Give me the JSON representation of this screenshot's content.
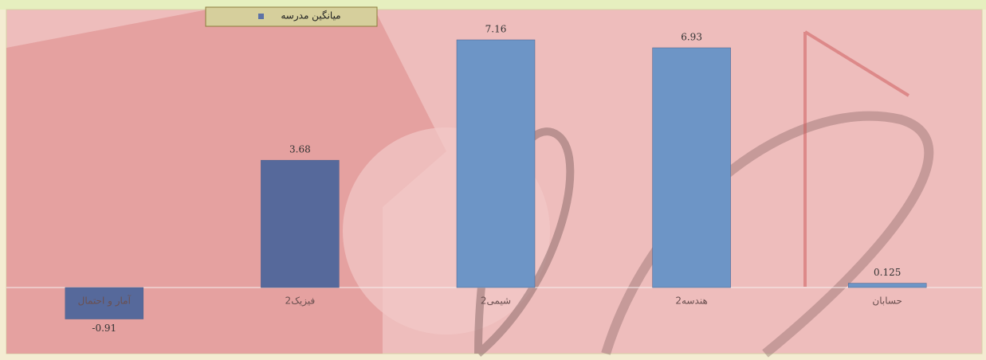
{
  "chart_data": {
    "type": "bar",
    "legend": "میانگین مدرسه",
    "categories": [
      "آمار و احتمال",
      "فیزیک2",
      "شیمی2",
      "هندسه2",
      "حسابان"
    ],
    "values": [
      -0.91,
      3.68,
      7.16,
      6.93,
      0.125
    ],
    "colors": [
      "#56699b",
      "#56699b",
      "#6d95c6",
      "#6d95c6",
      "#6d95c6"
    ],
    "legend_color": "#5d72a6"
  }
}
